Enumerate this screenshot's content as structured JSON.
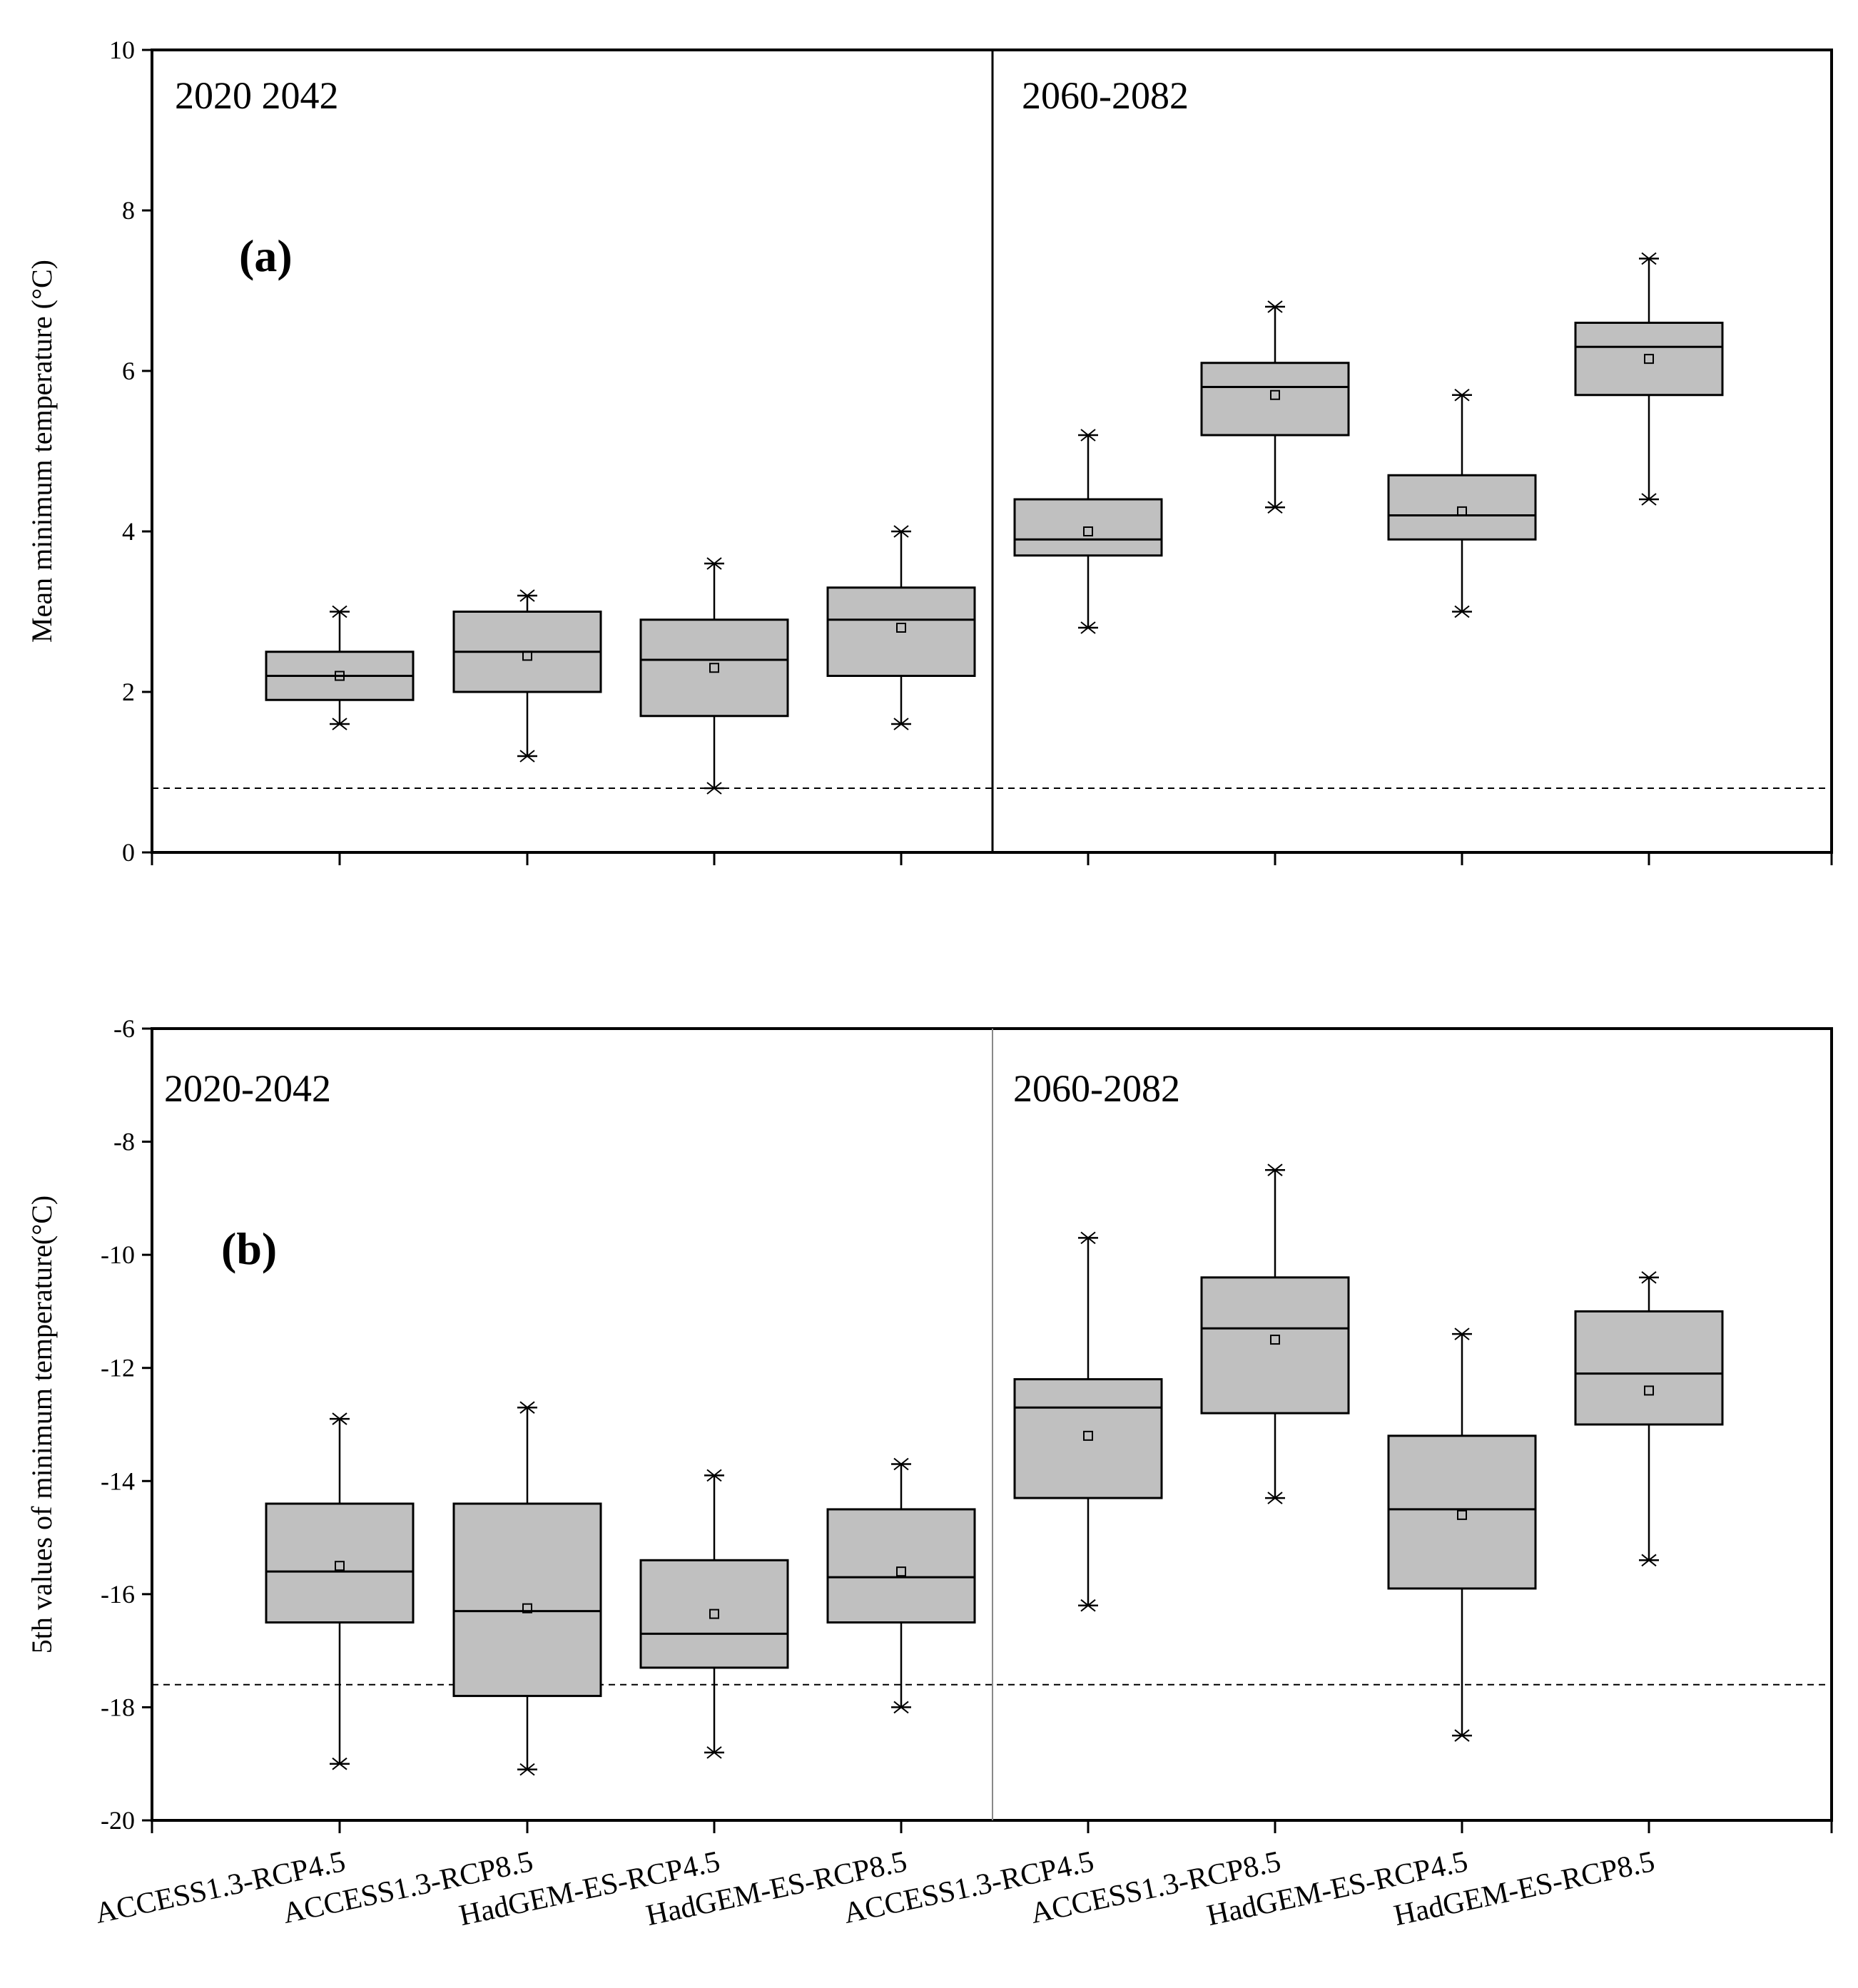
{
  "chart_data": [
    {
      "type": "box",
      "panel_label": "(a)",
      "ylabel": "Mean minimum temperature (°C)",
      "ylim": [
        0,
        10
      ],
      "yticks": [
        0,
        2,
        4,
        6,
        8,
        10
      ],
      "period_labels": [
        "2020  2042",
        "2060-2082"
      ],
      "reference_line": 0.8,
      "boxes": [
        {
          "category": "ACCESS1.3-RCP4.5",
          "min": 1.6,
          "q1": 1.9,
          "median": 2.2,
          "q3": 2.5,
          "max": 3.0,
          "mean": 2.2
        },
        {
          "category": "ACCESS1.3-RCP8.5",
          "min": 1.2,
          "q1": 2.0,
          "median": 2.5,
          "q3": 3.0,
          "max": 3.2,
          "mean": 2.45
        },
        {
          "category": "HadGEM-ES-RCP4.5",
          "min": 0.8,
          "q1": 1.7,
          "median": 2.4,
          "q3": 2.9,
          "max": 3.6,
          "mean": 2.3
        },
        {
          "category": "HadGEM-ES-RCP8.5",
          "min": 1.6,
          "q1": 2.2,
          "median": 2.9,
          "q3": 3.3,
          "max": 4.0,
          "mean": 2.8
        },
        {
          "category": "ACCESS1.3-RCP4.5",
          "min": 2.8,
          "q1": 3.7,
          "median": 3.9,
          "q3": 4.4,
          "max": 5.2,
          "mean": 4.0
        },
        {
          "category": "ACCESS1.3-RCP8.5",
          "min": 4.3,
          "q1": 5.2,
          "median": 5.8,
          "q3": 6.1,
          "max": 6.8,
          "mean": 5.7
        },
        {
          "category": "HadGEM-ES-RCP4.5",
          "min": 3.0,
          "q1": 3.9,
          "median": 4.2,
          "q3": 4.7,
          "max": 5.7,
          "mean": 4.25
        },
        {
          "category": "HadGEM-ES-RCP8.5",
          "min": 4.4,
          "q1": 5.7,
          "median": 6.3,
          "q3": 6.6,
          "max": 7.4,
          "mean": 6.15
        }
      ]
    },
    {
      "type": "box",
      "panel_label": "(b)",
      "ylabel": "5th values of minimum temperature(°C)",
      "ylim": [
        -20,
        -6
      ],
      "yticks": [
        -20,
        -18,
        -16,
        -14,
        -12,
        -10,
        -8,
        -6
      ],
      "period_labels": [
        "2020-2042",
        "2060-2082"
      ],
      "reference_line": -17.6,
      "boxes": [
        {
          "category": "ACCESS1.3-RCP4.5",
          "min": -19.0,
          "q1": -16.5,
          "median": -15.6,
          "q3": -14.4,
          "max": -12.9,
          "mean": -15.5
        },
        {
          "category": "ACCESS1.3-RCP8.5",
          "min": -19.1,
          "q1": -17.8,
          "median": -16.3,
          "q3": -14.4,
          "max": -12.7,
          "mean": -16.25
        },
        {
          "category": "HadGEM-ES-RCP4.5",
          "min": -18.8,
          "q1": -17.3,
          "median": -16.7,
          "q3": -15.4,
          "max": -13.9,
          "mean": -16.35
        },
        {
          "category": "HadGEM-ES-RCP8.5",
          "min": -18.0,
          "q1": -16.5,
          "median": -15.7,
          "q3": -14.5,
          "max": -13.7,
          "mean": -15.6
        },
        {
          "category": "ACCESS1.3-RCP4.5",
          "min": -16.2,
          "q1": -14.3,
          "median": -12.7,
          "q3": -12.2,
          "max": -9.7,
          "mean": -13.2
        },
        {
          "category": "ACCESS1.3-RCP8.5",
          "min": -14.3,
          "q1": -12.8,
          "median": -11.3,
          "q3": -10.4,
          "max": -8.5,
          "mean": -11.5
        },
        {
          "category": "HadGEM-ES-RCP4.5",
          "min": -18.5,
          "q1": -15.9,
          "median": -14.5,
          "q3": -13.2,
          "max": -11.4,
          "mean": -14.6
        },
        {
          "category": "HadGEM-ES-RCP8.5",
          "min": -15.4,
          "q1": -13.0,
          "median": -12.1,
          "q3": -11.0,
          "max": -10.4,
          "mean": -12.4
        }
      ]
    }
  ]
}
